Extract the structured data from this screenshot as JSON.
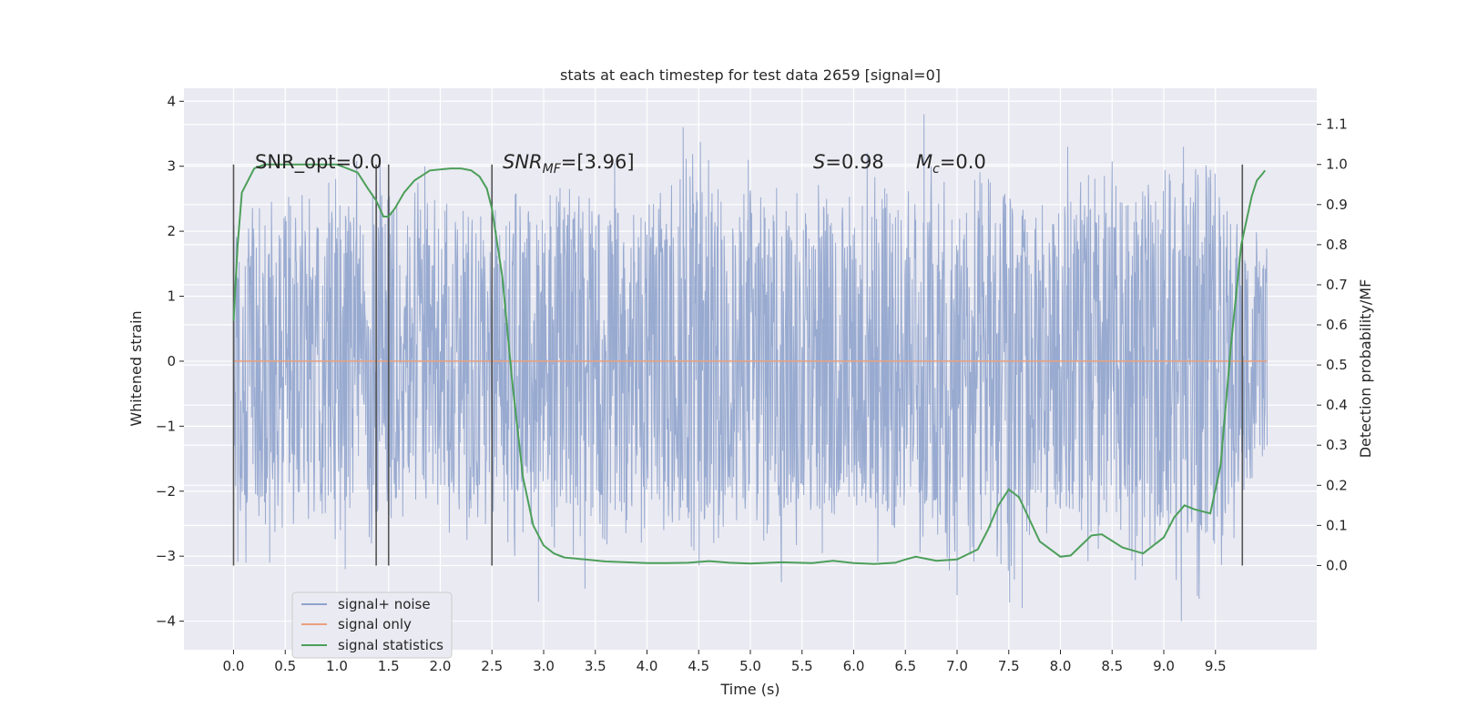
{
  "chart_data": {
    "type": "line",
    "title": "stats at each timestep for test data 2659 [signal=0]",
    "xlabel": "Time (s)",
    "ylabel": "Whitened strain",
    "ylabel_right": "Detection probability/MF",
    "xlim": [
      -0.48,
      10.48
    ],
    "ylim": [
      -4.44,
      4.2
    ],
    "ylim_right": [
      -0.21,
      1.19
    ],
    "x_ticks": [
      "0.0",
      "0.5",
      "1.0",
      "1.5",
      "2.0",
      "2.5",
      "3.0",
      "3.5",
      "4.0",
      "4.5",
      "5.0",
      "5.5",
      "6.0",
      "6.5",
      "7.0",
      "7.5",
      "8.0",
      "8.5",
      "9.0",
      "9.5"
    ],
    "y_ticks_left": [
      "−4",
      "−3",
      "−2",
      "−1",
      "0",
      "1",
      "2",
      "3",
      "4"
    ],
    "y_ticks_right": [
      "0.0",
      "0.1",
      "0.2",
      "0.3",
      "0.4",
      "0.5",
      "0.6",
      "0.7",
      "0.8",
      "0.9",
      "1.0",
      "1.1"
    ],
    "grid": true,
    "legend_position": "lower-left",
    "annotations": {
      "snr_opt": "SNR_opt=0.0",
      "snr_mf_prefix": "SNR",
      "snr_mf_sub": "MF",
      "snr_mf_value": "=[3.96]",
      "s_prefix": "S",
      "s_value": "=0.98",
      "mc_prefix": "M",
      "mc_sub": "c",
      "mc_value": "=0.0"
    },
    "vertical_markers": [
      0.0,
      1.38,
      1.5,
      2.5,
      9.76
    ],
    "noise_envelope": {
      "x": [
        0.0,
        0.25,
        0.5,
        0.75,
        1.0,
        1.25,
        1.5,
        1.75,
        2.0,
        2.25,
        2.5,
        2.75,
        3.0,
        3.25,
        3.5,
        3.75,
        4.0,
        4.25,
        4.5,
        4.75,
        5.0,
        5.25,
        5.5,
        5.75,
        6.0,
        6.25,
        6.5,
        6.75,
        7.0,
        7.25,
        7.5,
        7.75,
        8.0,
        8.25,
        8.5,
        8.75,
        9.0,
        9.25,
        9.5,
        9.75,
        10.0
      ],
      "upper": [
        2.3,
        2.6,
        2.7,
        2.5,
        2.9,
        3.2,
        3.0,
        2.8,
        2.7,
        2.6,
        2.3,
        3.0,
        2.6,
        2.7,
        3.0,
        3.2,
        2.5,
        2.8,
        3.6,
        2.4,
        2.8,
        2.7,
        3.0,
        2.7,
        2.8,
        3.0,
        2.6,
        3.2,
        2.6,
        3.0,
        2.7,
        2.9,
        2.6,
        3.0,
        3.1,
        2.9,
        3.0,
        2.9,
        3.3,
        2.4,
        1.8
      ],
      "lower": [
        -3.2,
        -2.8,
        -2.6,
        -2.5,
        -2.8,
        -3.2,
        -2.6,
        -2.4,
        -2.8,
        -2.9,
        -2.5,
        -3.2,
        -2.6,
        -3.4,
        -2.8,
        -2.9,
        -3.0,
        -2.5,
        -3.2,
        -2.6,
        -3.3,
        -3.0,
        -2.8,
        -3.1,
        -2.5,
        -3.2,
        -3.2,
        -2.8,
        -3.6,
        -2.9,
        -3.8,
        -2.7,
        -2.9,
        -3.1,
        -2.8,
        -3.6,
        -3.0,
        -4.0,
        -3.4,
        -2.9,
        -1.7
      ],
      "spikes": [
        [
          0.12,
          -3.1
        ],
        [
          0.35,
          -3.1
        ],
        [
          1.08,
          -3.2
        ],
        [
          1.85,
          3.0
        ],
        [
          2.95,
          -3.7
        ],
        [
          3.4,
          -3.5
        ],
        [
          4.35,
          3.6
        ],
        [
          4.98,
          3.1
        ],
        [
          5.3,
          -3.4
        ],
        [
          6.13,
          3.2
        ],
        [
          6.68,
          3.8
        ],
        [
          7.0,
          -3.6
        ],
        [
          7.63,
          -3.8
        ],
        [
          8.07,
          3.3
        ],
        [
          9.17,
          -4.0
        ],
        [
          9.19,
          3.3
        ]
      ]
    },
    "series": [
      {
        "name": "signal+ noise",
        "color": "#8fa3cc",
        "axis": "left"
      },
      {
        "name": "signal only",
        "color": "#e8a07e",
        "axis": "left",
        "x": [
          0.0,
          10.0
        ],
        "y": [
          0.0,
          0.0
        ]
      },
      {
        "name": "signal statistics",
        "color": "#4c9f5a",
        "axis": "right",
        "x": [
          0.0,
          0.04,
          0.08,
          0.12,
          0.2,
          0.3,
          0.5,
          0.7,
          0.9,
          1.0,
          1.1,
          1.2,
          1.3,
          1.38,
          1.45,
          1.5,
          1.56,
          1.65,
          1.75,
          1.9,
          2.1,
          2.2,
          2.3,
          2.38,
          2.45,
          2.5,
          2.6,
          2.7,
          2.8,
          2.9,
          3.0,
          3.1,
          3.2,
          3.4,
          3.6,
          3.8,
          4.0,
          4.2,
          4.4,
          4.6,
          4.8,
          5.0,
          5.3,
          5.6,
          5.8,
          6.0,
          6.2,
          6.4,
          6.5,
          6.6,
          6.8,
          7.0,
          7.2,
          7.3,
          7.4,
          7.5,
          7.6,
          7.8,
          8.0,
          8.1,
          8.2,
          8.3,
          8.4,
          8.6,
          8.8,
          9.0,
          9.1,
          9.2,
          9.3,
          9.45,
          9.55,
          9.65,
          9.75,
          9.85,
          9.9,
          9.95,
          9.98
        ],
        "y": [
          0.61,
          0.8,
          0.93,
          0.95,
          0.99,
          1.0,
          1.0,
          1.0,
          1.0,
          1.0,
          0.99,
          0.98,
          0.94,
          0.91,
          0.87,
          0.87,
          0.89,
          0.93,
          0.96,
          0.985,
          0.99,
          0.99,
          0.985,
          0.97,
          0.94,
          0.89,
          0.72,
          0.45,
          0.22,
          0.1,
          0.05,
          0.03,
          0.02,
          0.015,
          0.01,
          0.008,
          0.006,
          0.006,
          0.007,
          0.011,
          0.007,
          0.005,
          0.008,
          0.006,
          0.012,
          0.006,
          0.004,
          0.007,
          0.015,
          0.022,
          0.012,
          0.015,
          0.04,
          0.09,
          0.15,
          0.19,
          0.17,
          0.06,
          0.022,
          0.025,
          0.05,
          0.075,
          0.078,
          0.045,
          0.03,
          0.07,
          0.12,
          0.15,
          0.14,
          0.13,
          0.25,
          0.55,
          0.8,
          0.92,
          0.96,
          0.975,
          0.985
        ]
      }
    ]
  }
}
